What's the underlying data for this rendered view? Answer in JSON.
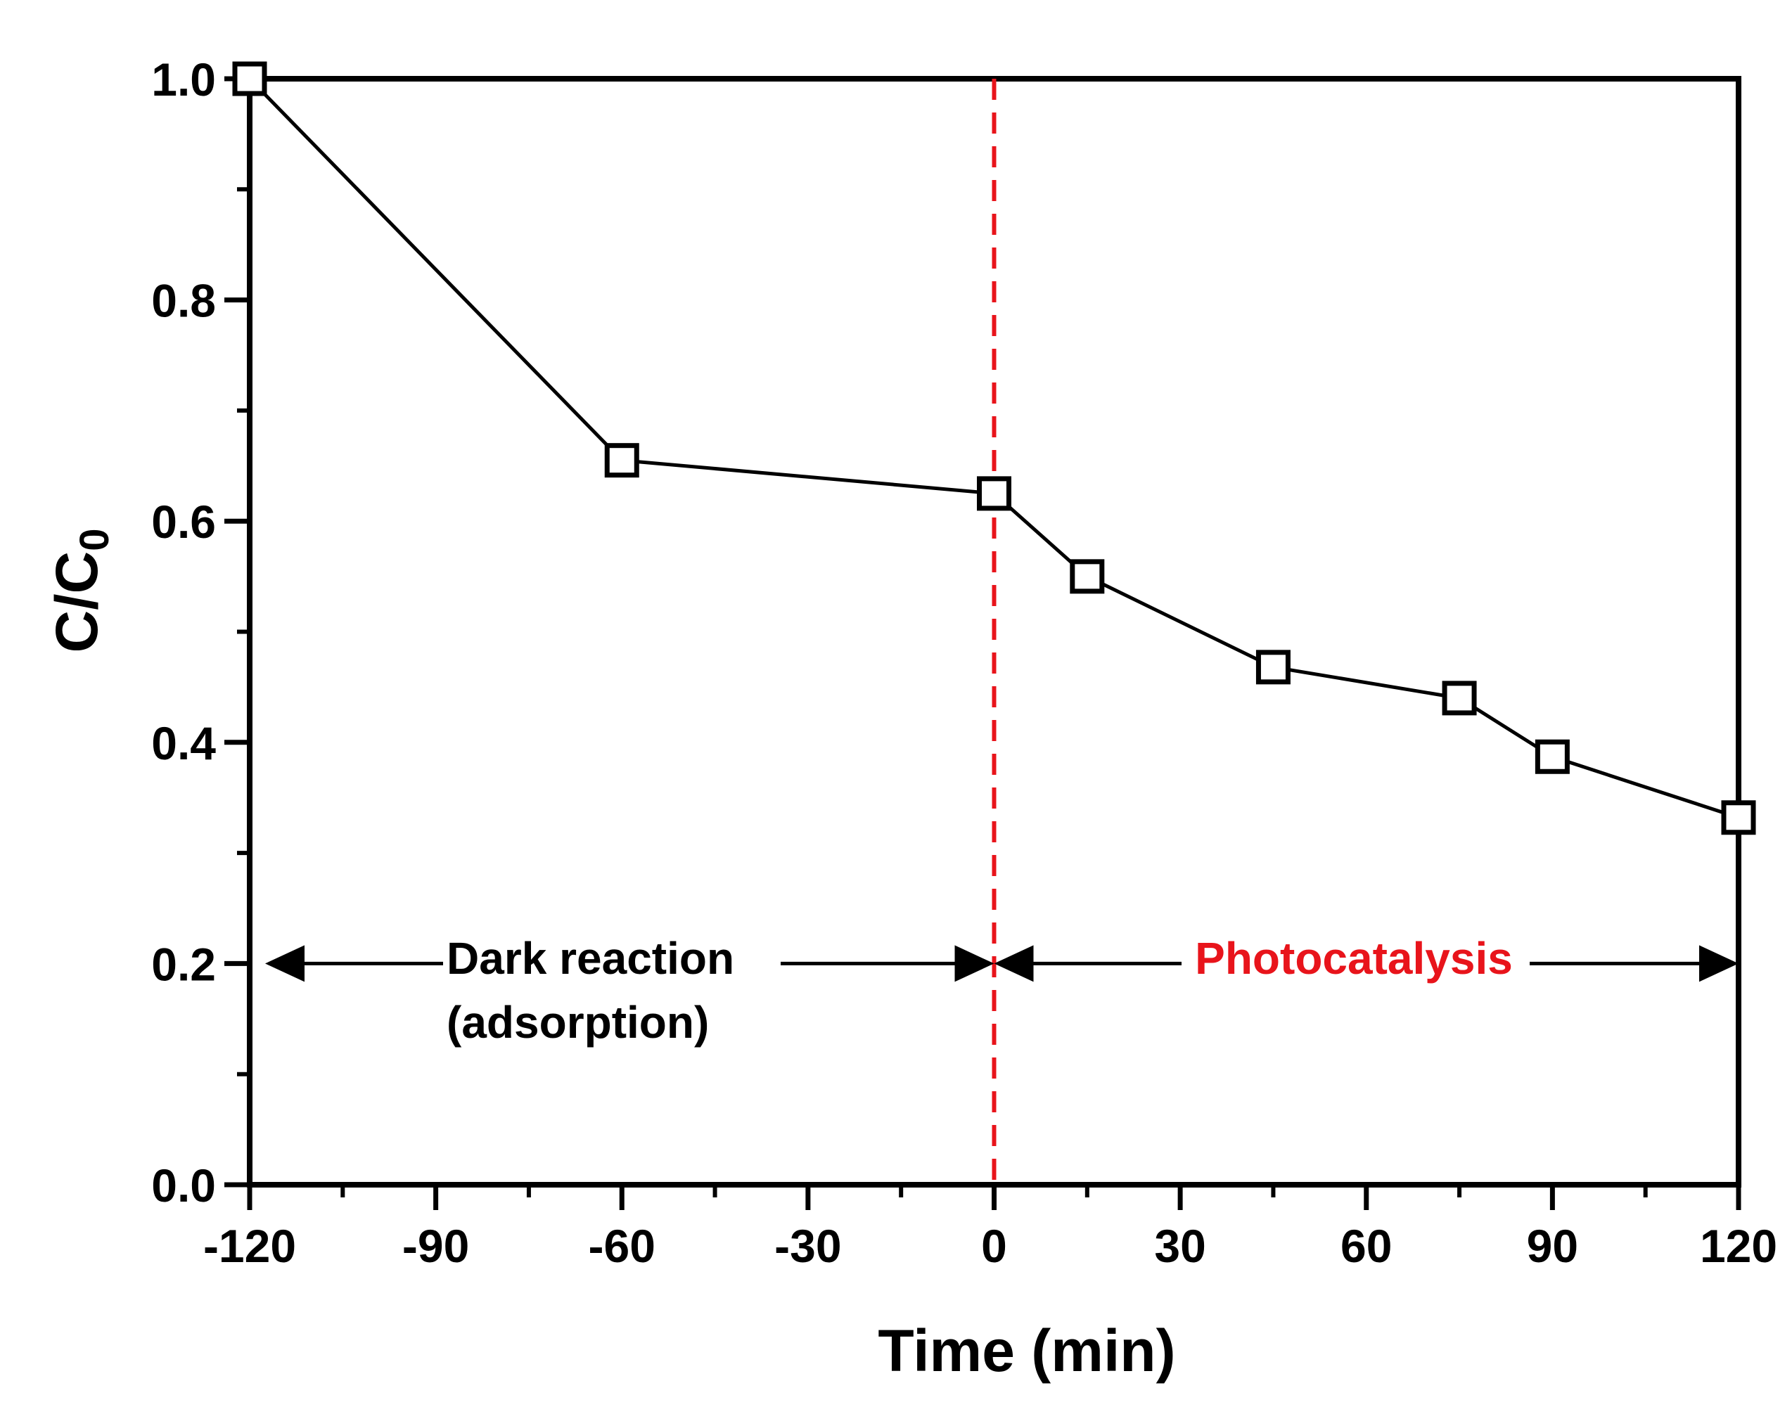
{
  "chart_data": {
    "type": "line",
    "title": "",
    "xlabel": "Time (min)",
    "ylabel_main": "C/C",
    "ylabel_sub": "0",
    "xlim": [
      -120,
      120
    ],
    "ylim": [
      0.0,
      1.0
    ],
    "xticks": [
      "-120",
      "-90",
      "-60",
      "-30",
      "0",
      "30",
      "60",
      "90",
      "120"
    ],
    "yticks": [
      "0.0",
      "0.2",
      "0.4",
      "0.6",
      "0.8",
      "1.0"
    ],
    "grid": false,
    "series": [
      {
        "name": "C/C0",
        "marker": "open-square",
        "x": [
          -120,
          -60,
          0,
          15,
          45,
          75,
          90,
          120
        ],
        "y": [
          1.0,
          0.655,
          0.625,
          0.55,
          0.468,
          0.44,
          0.387,
          0.332
        ]
      }
    ],
    "divider": {
      "x": 0,
      "color": "#e8141b",
      "style": "dashed"
    },
    "annotations": {
      "dark_line1": "Dark reaction",
      "dark_line2": "(adsorption)",
      "photo": "Photocatalysis",
      "arrow_y": 0.2,
      "dark_range": [
        -120,
        0
      ],
      "photo_range": [
        0,
        120
      ]
    },
    "colors": {
      "line": "#000000",
      "accent": "#e8141b"
    }
  }
}
